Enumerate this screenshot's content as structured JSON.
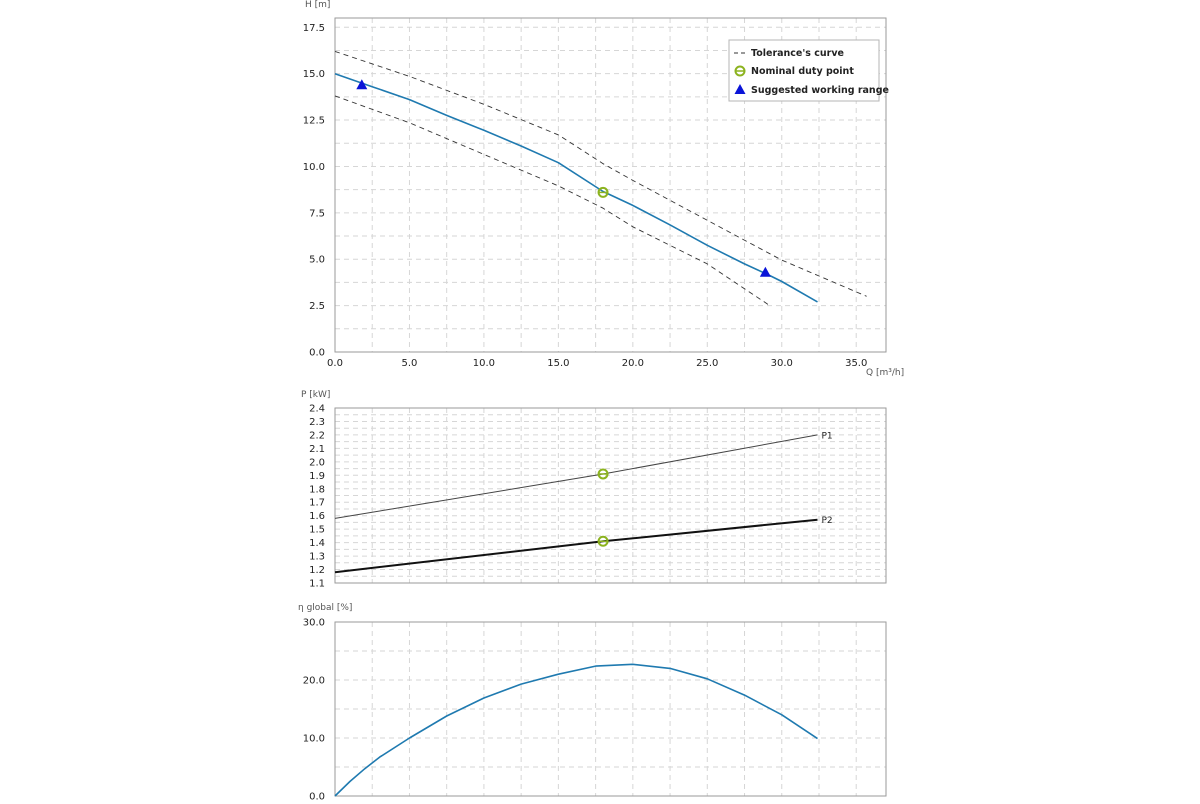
{
  "chart_data": [
    {
      "id": "head",
      "type": "line",
      "xlabel": "Q [m³/h]",
      "ylabel": "H [m]",
      "xlim": [
        0,
        37
      ],
      "ylim": [
        0,
        18
      ],
      "x_ticks": [
        "0.0",
        "5.0",
        "10.0",
        "15.0",
        "20.0",
        "25.0",
        "30.0",
        "35.0"
      ],
      "y_ticks": [
        "0.0",
        "2.5",
        "5.0",
        "7.5",
        "10.0",
        "12.5",
        "15.0",
        "17.5"
      ],
      "grid": true,
      "legend": {
        "position": "top-right",
        "entries": [
          "Tolerance's curve",
          "Nominal duty point",
          "Suggested working range"
        ]
      },
      "series": [
        {
          "role": "main-curve",
          "color": "#1f7ab0",
          "points": [
            [
              0,
              15.0
            ],
            [
              2.5,
              14.3
            ],
            [
              5,
              13.6
            ],
            [
              7.5,
              12.75
            ],
            [
              10,
              11.95
            ],
            [
              12.5,
              11.1
            ],
            [
              15,
              10.2
            ],
            [
              18,
              8.65
            ],
            [
              20,
              7.9
            ],
            [
              22.5,
              6.85
            ],
            [
              25,
              5.75
            ],
            [
              27.5,
              4.75
            ],
            [
              29,
              4.2
            ],
            [
              30,
              3.8
            ],
            [
              32.4,
              2.7
            ]
          ]
        },
        {
          "role": "tolerance-upper",
          "color": "#333333",
          "points": [
            [
              0,
              16.2
            ],
            [
              5,
              14.85
            ],
            [
              10,
              13.35
            ],
            [
              15,
              11.7
            ],
            [
              18,
              10.15
            ],
            [
              20,
              9.25
            ],
            [
              25,
              7.1
            ],
            [
              30,
              4.95
            ],
            [
              35.7,
              3.0
            ]
          ]
        },
        {
          "role": "tolerance-lower",
          "color": "#333333",
          "points": [
            [
              0,
              13.8
            ],
            [
              5,
              12.35
            ],
            [
              10,
              10.65
            ],
            [
              15,
              8.95
            ],
            [
              18,
              7.75
            ],
            [
              20,
              6.75
            ],
            [
              25,
              4.75
            ],
            [
              29.2,
              2.5
            ]
          ]
        }
      ],
      "duty_point": {
        "x": 18.0,
        "y": 8.6,
        "color": "#8cb31f"
      },
      "working_range": {
        "points": [
          [
            1.8,
            14.4
          ],
          [
            28.9,
            4.3
          ]
        ],
        "color": "#0a14d8"
      }
    },
    {
      "id": "power",
      "type": "line",
      "ylabel": "P [kW]",
      "xlim": [
        0,
        37
      ],
      "ylim": [
        1.1,
        2.4
      ],
      "x_grid": [
        2.5,
        5,
        7.5,
        10,
        12.5,
        15,
        17.5,
        20,
        22.5,
        25,
        27.5,
        30,
        32.5,
        35
      ],
      "y_ticks": [
        "1.1",
        "1.2",
        "1.3",
        "1.4",
        "1.5",
        "1.6",
        "1.7",
        "1.8",
        "1.9",
        "2.0",
        "2.1",
        "2.2",
        "2.3",
        "2.4"
      ],
      "grid": true,
      "series": [
        {
          "name": "P1",
          "color": "#444444",
          "width": 1,
          "points": [
            [
              0,
              1.58
            ],
            [
              18,
              1.91
            ],
            [
              32.4,
              2.2
            ]
          ]
        },
        {
          "name": "P2",
          "color": "#111111",
          "width": 2,
          "points": [
            [
              0,
              1.18
            ],
            [
              18,
              1.41
            ],
            [
              32.4,
              1.57
            ]
          ]
        }
      ],
      "duty_points": [
        {
          "x": 18.0,
          "y": 1.91,
          "color": "#8cb31f"
        },
        {
          "x": 18.0,
          "y": 1.41,
          "color": "#8cb31f"
        }
      ]
    },
    {
      "id": "efficiency",
      "type": "line",
      "ylabel": "η global [%]",
      "xlim": [
        0,
        37
      ],
      "ylim": [
        0,
        30
      ],
      "x_grid": [
        2.5,
        5,
        7.5,
        10,
        12.5,
        15,
        17.5,
        20,
        22.5,
        25,
        27.5,
        30,
        32.5,
        35
      ],
      "y_ticks": [
        "0.0",
        "10.0",
        "20.0",
        "30.0"
      ],
      "grid": true,
      "series": [
        {
          "role": "efficiency-curve",
          "color": "#1f7ab0",
          "points": [
            [
              0,
              0.0
            ],
            [
              1,
              2.5
            ],
            [
              2,
              4.7
            ],
            [
              3,
              6.7
            ],
            [
              5,
              10.0
            ],
            [
              7.5,
              13.8
            ],
            [
              10,
              16.9
            ],
            [
              12.5,
              19.3
            ],
            [
              15,
              21.0
            ],
            [
              17.5,
              22.4
            ],
            [
              20,
              22.7
            ],
            [
              22.5,
              22.0
            ],
            [
              25,
              20.2
            ],
            [
              27.5,
              17.4
            ],
            [
              30,
              14.0
            ],
            [
              32.4,
              9.9
            ]
          ]
        }
      ]
    }
  ]
}
